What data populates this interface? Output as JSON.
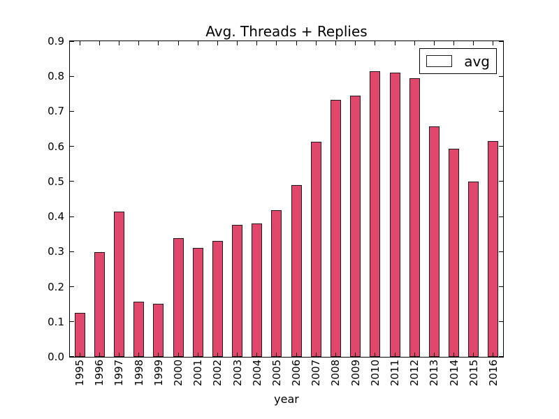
{
  "chart_data": {
    "type": "bar",
    "title": "Avg. Threads + Replies",
    "xlabel": "year",
    "ylabel": "",
    "categories": [
      "1995",
      "1996",
      "1997",
      "1998",
      "1999",
      "2000",
      "2001",
      "2002",
      "2003",
      "2004",
      "2005",
      "2006",
      "2007",
      "2008",
      "2009",
      "2010",
      "2011",
      "2012",
      "2013",
      "2014",
      "2015",
      "2016"
    ],
    "values": [
      0.125,
      0.298,
      0.414,
      0.157,
      0.152,
      0.339,
      0.31,
      0.33,
      0.376,
      0.38,
      0.419,
      0.489,
      0.613,
      0.733,
      0.745,
      0.815,
      0.81,
      0.794,
      0.657,
      0.594,
      0.5,
      0.615
    ],
    "ylim": [
      0.0,
      0.9
    ],
    "ytick_labels": [
      "0.0",
      "0.1",
      "0.2",
      "0.3",
      "0.4",
      "0.5",
      "0.6",
      "0.7",
      "0.8",
      "0.9"
    ],
    "legend": {
      "label": "avg",
      "position": "upper right"
    },
    "grid": false,
    "tick_direction": "in",
    "colors": {
      "bar_fill": "#e0476b",
      "bar_edge": "#1f1a1d",
      "axis": "#000000",
      "background": "#ffffff"
    }
  }
}
